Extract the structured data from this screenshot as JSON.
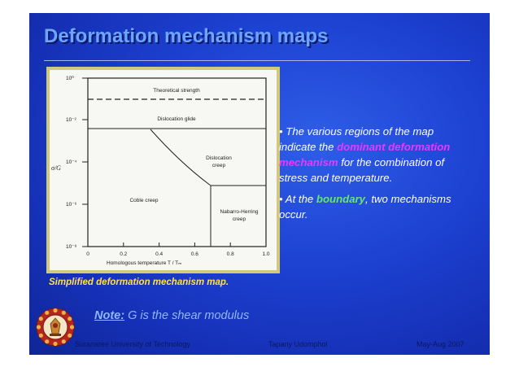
{
  "slide": {
    "title": "Deformation mechanism maps",
    "bullets": [
      {
        "pre": "• The various regions of the map indicate the ",
        "highlight": "dominant deformation mechanism",
        "post": " for the combination of stress and temperature.",
        "highlight_color": "#e83aff"
      },
      {
        "pre": "• At the ",
        "highlight": "boundary",
        "post": ", two mechanisms occur.",
        "highlight_color": "#66e86e"
      }
    ],
    "caption": "Simplified deformation mechanism map.",
    "note": {
      "label": "Note:",
      "text": " G is the shear modulus"
    },
    "footer": {
      "left": "Suranaree University of Technology",
      "center": "Tapany Udomphol",
      "right": "May-Aug   2007"
    },
    "logo": {
      "icon": "university-seal-icon"
    }
  },
  "figure": {
    "y_label": "σ/G",
    "y_ticks": [
      "10⁰",
      "10⁻²",
      "10⁻⁴",
      "10⁻⁶",
      "10⁻⁸"
    ],
    "x_ticks": [
      "0",
      "0.2",
      "0.4",
      "0.6",
      "0.8",
      "1.0"
    ],
    "x_label": "Homologous temperature T / Tₘ",
    "regions": {
      "theoretical": "Theoretical strength",
      "glide": "Dislocation glide",
      "dislocation_creep_1": "Dislocation",
      "dislocation_creep_2": "creep",
      "coble": "Coble creep",
      "nabarro_1": "Nabarro-Herring",
      "nabarro_2": "creep"
    }
  }
}
